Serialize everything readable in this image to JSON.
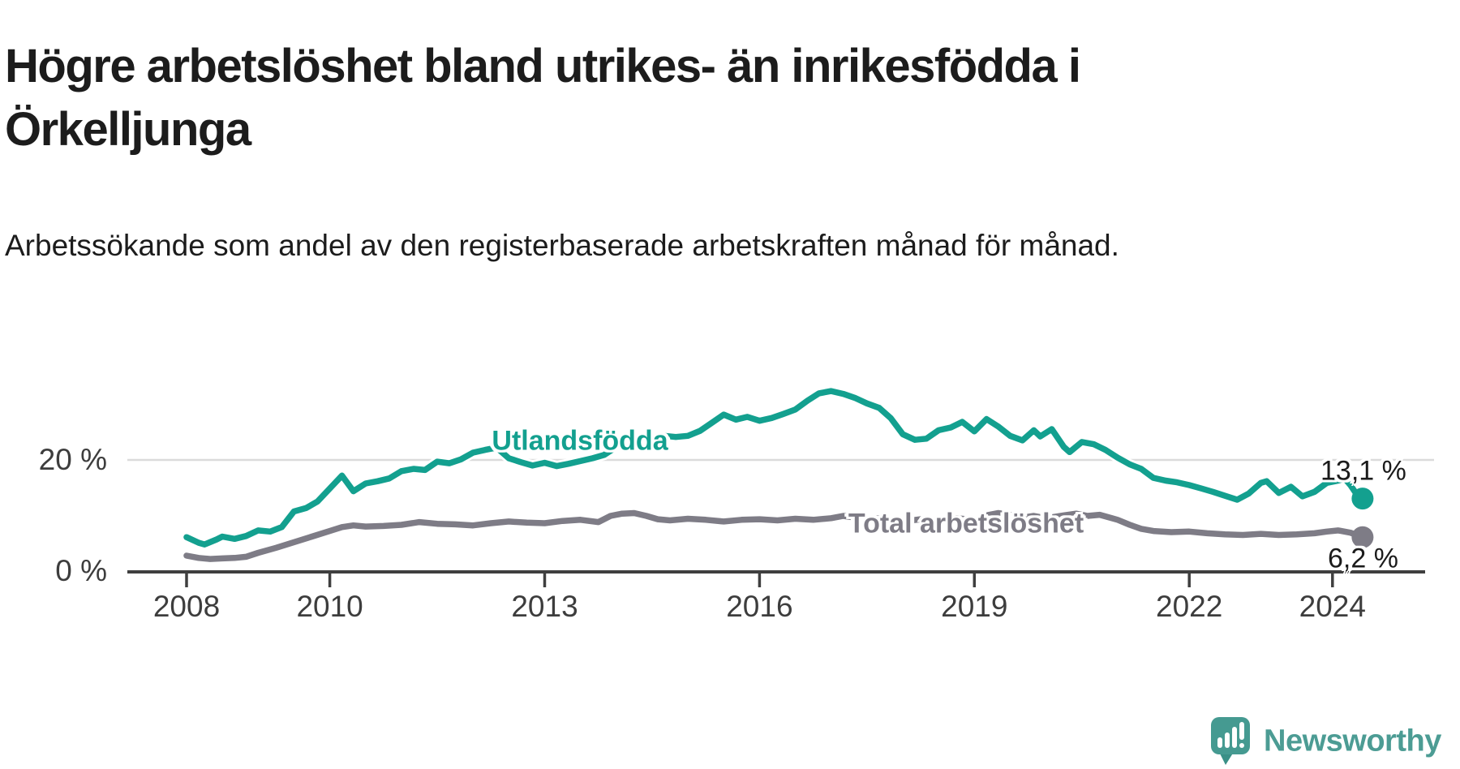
{
  "title": "Högre arbetslöshet bland utrikes- än inrikesfödda i Örkelljunga",
  "subtitle": "Arbetssökande som andel av den registerbaserade arbetskraften månad för månad.",
  "branding": {
    "text": "Newsworthy",
    "color": "#4C9C94"
  },
  "colors": {
    "accent_teal": "#13A08F",
    "accent_gray": "#7E7C86",
    "axis": "#3F3F3F",
    "grid": "#DBDBDB",
    "text": "#1C1C1C"
  },
  "chart_data": {
    "type": "line",
    "unit": "%",
    "grid": "horizontal, only at 20 %",
    "legend_position": "inline labels on lines",
    "x_range": [
      2007.2,
      2025.3
    ],
    "y_range": [
      0,
      35
    ],
    "x_ticks": [
      {
        "value": 2008,
        "label": "2008"
      },
      {
        "value": 2010,
        "label": "2010"
      },
      {
        "value": 2013,
        "label": "2013"
      },
      {
        "value": 2016,
        "label": "2016"
      },
      {
        "value": 2019,
        "label": "2019"
      },
      {
        "value": 2022,
        "label": "2022"
      },
      {
        "value": 2024,
        "label": "2024"
      }
    ],
    "y_ticks": [
      {
        "value": 0,
        "label": "0 %"
      },
      {
        "value": 20,
        "label": "20 %"
      }
    ],
    "series": [
      {
        "name": "Utlandsfödda",
        "color": "#13A08F",
        "end_value": 13.1,
        "end_label": "13,1 %",
        "x": [
          2008,
          2008.17,
          2008.25,
          2008.42,
          2008.5,
          2008.67,
          2008.83,
          2009,
          2009.17,
          2009.33,
          2009.5,
          2009.67,
          2009.83,
          2010,
          2010.17,
          2010.33,
          2010.5,
          2010.67,
          2010.83,
          2011,
          2011.17,
          2011.33,
          2011.5,
          2011.67,
          2011.83,
          2012,
          2012.17,
          2012.33,
          2012.5,
          2012.67,
          2012.83,
          2013,
          2013.17,
          2013.33,
          2013.5,
          2013.67,
          2013.83,
          2014,
          2014.17,
          2014.33,
          2014.5,
          2014.67,
          2014.83,
          2015,
          2015.17,
          2015.33,
          2015.5,
          2015.67,
          2015.83,
          2016,
          2016.17,
          2016.33,
          2016.5,
          2016.67,
          2016.83,
          2017,
          2017.17,
          2017.33,
          2017.5,
          2017.67,
          2017.83,
          2018,
          2018.17,
          2018.33,
          2018.5,
          2018.67,
          2018.83,
          2019,
          2019.17,
          2019.33,
          2019.5,
          2019.67,
          2019.83,
          2019.92,
          2020.08,
          2020.25,
          2020.33,
          2020.5,
          2020.67,
          2020.83,
          2021,
          2021.17,
          2021.33,
          2021.5,
          2021.67,
          2021.83,
          2022,
          2022.17,
          2022.33,
          2022.5,
          2022.67,
          2022.83,
          2023,
          2023.08,
          2023.25,
          2023.42,
          2023.58,
          2023.75,
          2023.92,
          2024.08,
          2024.17,
          2024.25,
          2024.33,
          2024.42
        ],
        "values": [
          6.2,
          5.2,
          4.9,
          5.8,
          6.3,
          5.9,
          6.4,
          7.4,
          7.2,
          8.0,
          10.8,
          11.4,
          12.6,
          14.9,
          17.2,
          14.4,
          15.8,
          16.2,
          16.7,
          18.0,
          18.4,
          18.2,
          19.7,
          19.4,
          20.1,
          21.3,
          21.8,
          22.2,
          20.3,
          19.6,
          19.0,
          19.5,
          18.9,
          19.3,
          19.8,
          20.3,
          20.9,
          22.3,
          22.8,
          23.3,
          24.0,
          24.3,
          24.1,
          24.3,
          25.2,
          26.6,
          28.1,
          27.2,
          27.7,
          27.0,
          27.5,
          28.2,
          29.0,
          30.6,
          31.9,
          32.3,
          31.8,
          31.1,
          30.1,
          29.3,
          27.5,
          24.6,
          23.6,
          23.8,
          25.3,
          25.8,
          26.8,
          25.1,
          27.3,
          26.0,
          24.3,
          23.5,
          25.3,
          24.2,
          25.5,
          22.3,
          21.4,
          23.2,
          22.8,
          21.8,
          20.4,
          19.2,
          18.4,
          16.8,
          16.3,
          16.0,
          15.5,
          14.9,
          14.3,
          13.6,
          12.9,
          14.0,
          15.9,
          16.2,
          14.1,
          15.2,
          13.5,
          14.3,
          15.9,
          16.3,
          16.7,
          15.5,
          14.0,
          13.1
        ]
      },
      {
        "name": "Total arbetslöshet",
        "color": "#7E7C86",
        "end_value": 6.2,
        "end_label": "6,2 %",
        "x": [
          2008,
          2008.17,
          2008.33,
          2008.5,
          2008.67,
          2008.83,
          2009,
          2009.25,
          2009.5,
          2009.75,
          2010,
          2010.17,
          2010.33,
          2010.5,
          2010.75,
          2011,
          2011.25,
          2011.5,
          2011.75,
          2012,
          2012.25,
          2012.5,
          2012.75,
          2013,
          2013.25,
          2013.5,
          2013.75,
          2013.92,
          2014.08,
          2014.25,
          2014.42,
          2014.58,
          2014.75,
          2015,
          2015.25,
          2015.5,
          2015.75,
          2016,
          2016.25,
          2016.5,
          2016.75,
          2017,
          2017.17,
          2017.33,
          2017.5,
          2017.67,
          2017.83,
          2018,
          2018.25,
          2018.5,
          2018.75,
          2019,
          2019.17,
          2019.33,
          2019.5,
          2019.67,
          2019.83,
          2020,
          2020.25,
          2020.42,
          2020.58,
          2020.75,
          2021,
          2021.17,
          2021.33,
          2021.5,
          2021.75,
          2022,
          2022.25,
          2022.5,
          2022.75,
          2023,
          2023.25,
          2023.5,
          2023.75,
          2023.92,
          2024.08,
          2024.25,
          2024.42
        ],
        "values": [
          2.9,
          2.5,
          2.3,
          2.4,
          2.5,
          2.7,
          3.4,
          4.3,
          5.3,
          6.3,
          7.3,
          8.0,
          8.3,
          8.1,
          8.2,
          8.4,
          8.9,
          8.6,
          8.5,
          8.3,
          8.7,
          9.0,
          8.8,
          8.7,
          9.1,
          9.3,
          8.9,
          10.0,
          10.4,
          10.5,
          10.0,
          9.4,
          9.2,
          9.5,
          9.3,
          9.0,
          9.3,
          9.4,
          9.2,
          9.5,
          9.3,
          9.6,
          10.0,
          9.7,
          9.3,
          9.6,
          9.2,
          9.0,
          9.4,
          9.2,
          9.6,
          9.3,
          10.1,
          10.5,
          10.2,
          9.7,
          10.0,
          9.6,
          10.1,
          10.4,
          10.0,
          10.2,
          9.3,
          8.4,
          7.7,
          7.3,
          7.1,
          7.2,
          6.9,
          6.7,
          6.6,
          6.8,
          6.6,
          6.7,
          6.9,
          7.2,
          7.4,
          7.0,
          6.2
        ]
      }
    ]
  }
}
